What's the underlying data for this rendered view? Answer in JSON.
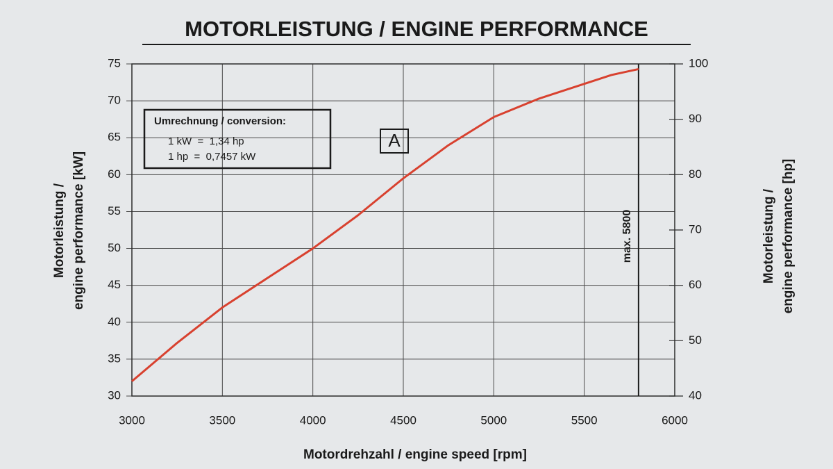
{
  "chart_data": {
    "type": "line",
    "title": "MOTORLEISTUNG / ENGINE PERFORMANCE",
    "x_label": "Motordrehzahl / engine speed [rpm]",
    "y_label": [
      "Motorleistung /",
      "engine performance [kW]"
    ],
    "y2_label": [
      "Motorleistung /",
      "engine performance [hp]"
    ],
    "x": [
      3000,
      3250,
      3500,
      3750,
      4000,
      4250,
      4500,
      4750,
      5000,
      5250,
      5500,
      5650,
      5800
    ],
    "values": [
      32,
      37.2,
      42,
      46,
      50,
      54.5,
      59.5,
      64,
      67.8,
      70.3,
      72.3,
      73.5,
      74.3
    ],
    "color": "#d8412f",
    "xlim": [
      3000,
      6000
    ],
    "xticks": [
      3000,
      3500,
      4000,
      4500,
      5000,
      5500,
      6000
    ],
    "ylim": [
      30,
      75
    ],
    "yticks": [
      30,
      35,
      40,
      45,
      50,
      55,
      60,
      65,
      70,
      75
    ],
    "y2lim": [
      40,
      100
    ],
    "y2ticks": [
      40,
      50,
      60,
      70,
      80,
      90,
      100
    ],
    "grid": true,
    "max_line": {
      "x": 5800,
      "label": "max. 5800"
    },
    "marker": "A",
    "conversion": {
      "heading": "Umrechnung / conversion:",
      "lines": [
        "1 kW  =  1,34 hp",
        "1 hp  =  0,7457 kW"
      ]
    }
  }
}
